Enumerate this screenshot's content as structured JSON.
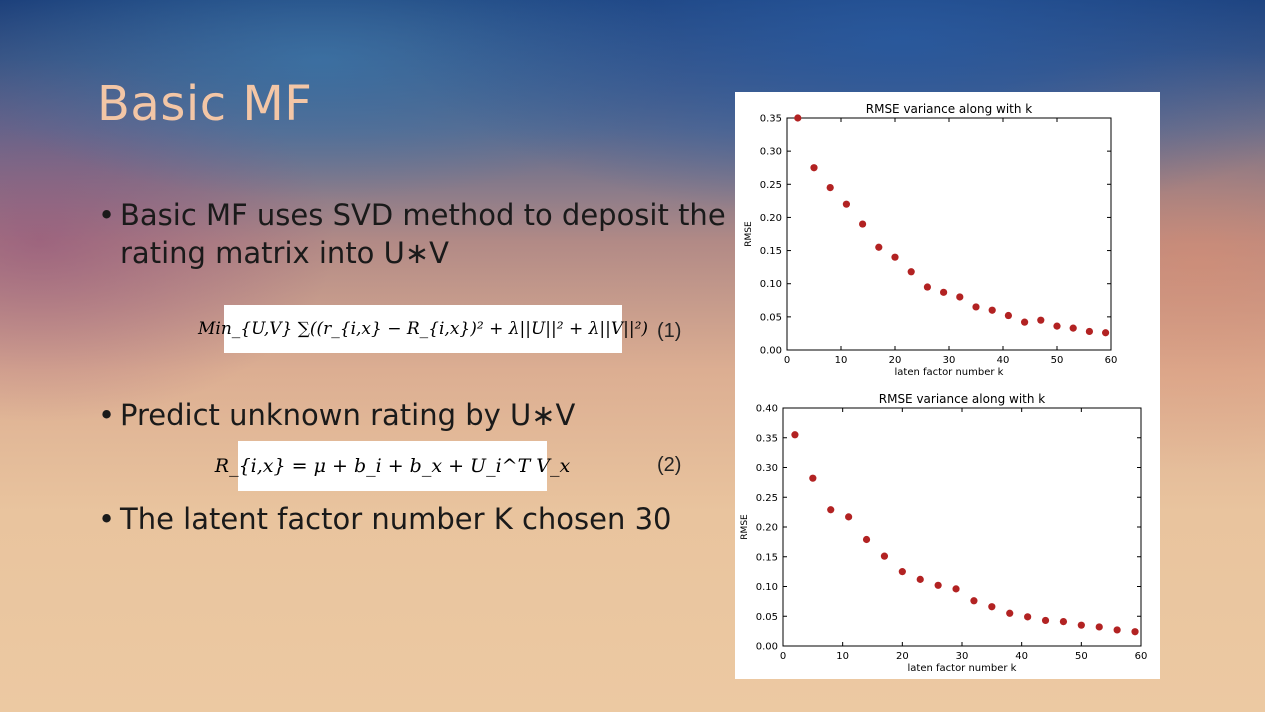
{
  "slide": {
    "title": "Basic MF",
    "bullets": [
      {
        "dot": "•",
        "text": "Basic MF uses SVD method to deposit the rating matrix into U∗V"
      },
      {
        "dot": "•",
        "text": "Predict unknown rating by U∗V"
      },
      {
        "dot": "•",
        "text": "The latent factor number K chosen 30"
      }
    ],
    "equations": [
      {
        "formula": "Min_{U,V} ∑((r_{i,x} − R_{i,x})² + λ||U||² + λ||V||²)",
        "number": "(1)"
      },
      {
        "formula": "R_{i,x} = μ + b_i + b_x + U_i^T V_x",
        "number": "(2)"
      }
    ],
    "colors": {
      "title": "#f3c6a6",
      "marker": "#b22222"
    }
  },
  "chart_data": [
    {
      "type": "scatter",
      "title": "RMSE variance along with k",
      "xlabel": "laten factor number k",
      "ylabel": "RMSE",
      "xlim": [
        0,
        60
      ],
      "ylim": [
        0.0,
        0.35
      ],
      "xticks": [
        "0",
        "10",
        "20",
        "30",
        "40",
        "50",
        "60"
      ],
      "yticks": [
        "0.00",
        "0.05",
        "0.10",
        "0.15",
        "0.20",
        "0.25",
        "0.30",
        "0.35"
      ],
      "x": [
        2,
        5,
        8,
        11,
        14,
        17,
        20,
        23,
        26,
        29,
        32,
        35,
        38,
        41,
        44,
        47,
        50,
        53,
        56,
        59
      ],
      "y": [
        0.35,
        0.275,
        0.245,
        0.22,
        0.19,
        0.155,
        0.14,
        0.118,
        0.095,
        0.087,
        0.08,
        0.065,
        0.06,
        0.052,
        0.042,
        0.045,
        0.036,
        0.033,
        0.028,
        0.026
      ],
      "grid": false
    },
    {
      "type": "scatter",
      "title": "RMSE variance along with k",
      "xlabel": "laten factor number k",
      "ylabel": "RMSE",
      "xlim": [
        0,
        60
      ],
      "ylim": [
        0.0,
        0.4
      ],
      "xticks": [
        "0",
        "10",
        "20",
        "30",
        "40",
        "50",
        "60"
      ],
      "yticks": [
        "0.00",
        "0.05",
        "0.10",
        "0.15",
        "0.20",
        "0.25",
        "0.30",
        "0.35",
        "0.40"
      ],
      "x": [
        2,
        5,
        8,
        11,
        14,
        17,
        20,
        23,
        26,
        29,
        32,
        35,
        38,
        41,
        44,
        47,
        50,
        53,
        56,
        59
      ],
      "y": [
        0.355,
        0.282,
        0.229,
        0.217,
        0.179,
        0.151,
        0.125,
        0.112,
        0.102,
        0.096,
        0.076,
        0.066,
        0.055,
        0.049,
        0.043,
        0.041,
        0.035,
        0.032,
        0.027,
        0.024
      ],
      "grid": false
    }
  ]
}
